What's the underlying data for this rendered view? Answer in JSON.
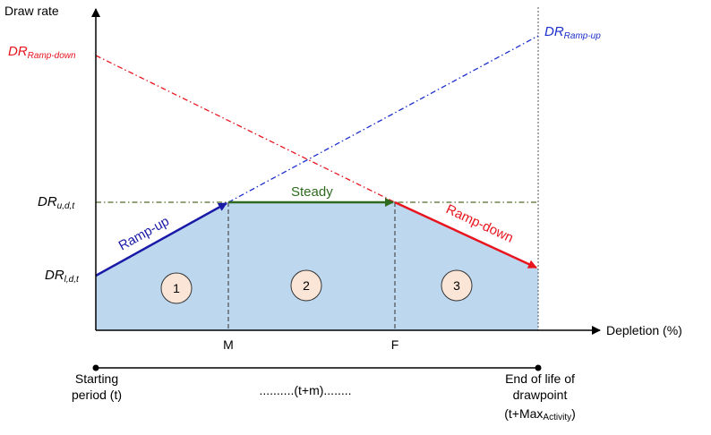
{
  "axes": {
    "y_label": "Draw rate",
    "x_label": "Depletion (%)"
  },
  "y_levels": {
    "dr_ramp_down": {
      "main": "DR",
      "sub": "Ramp-down",
      "color": "#e8141e"
    },
    "dr_ramp_up": {
      "main": "DR",
      "sub": "Ramp-up",
      "color": "#1c2fcc"
    },
    "dr_upper": {
      "main": "DR",
      "sub": "u,d,t"
    },
    "dr_lower": {
      "main": "DR",
      "sub": "l,d,t"
    }
  },
  "segments": {
    "ramp_up": {
      "label": "Ramp-up",
      "color": "#1a1aa8"
    },
    "steady": {
      "label": "Steady",
      "color": "#2e6b1f"
    },
    "ramp_down": {
      "label": "Ramp-down",
      "color": "#e8141e"
    }
  },
  "phases": [
    "1",
    "2",
    "3"
  ],
  "x_ticks": {
    "m": "M",
    "f": "F"
  },
  "timeline": {
    "start_line1": "Starting",
    "start_line2": "period (t)",
    "middle": "..........(t+m)........",
    "end_line1": "End of life of",
    "end_line2": "drawpoint",
    "end_line3_prefix": "(t+Max",
    "end_line3_sub": "Activity",
    "end_line3_suffix": ")"
  },
  "colors": {
    "area_fill": "#bdd7ee",
    "phase_circle_fill": "#fbe5d6",
    "reference_line": "#556b2f"
  }
}
